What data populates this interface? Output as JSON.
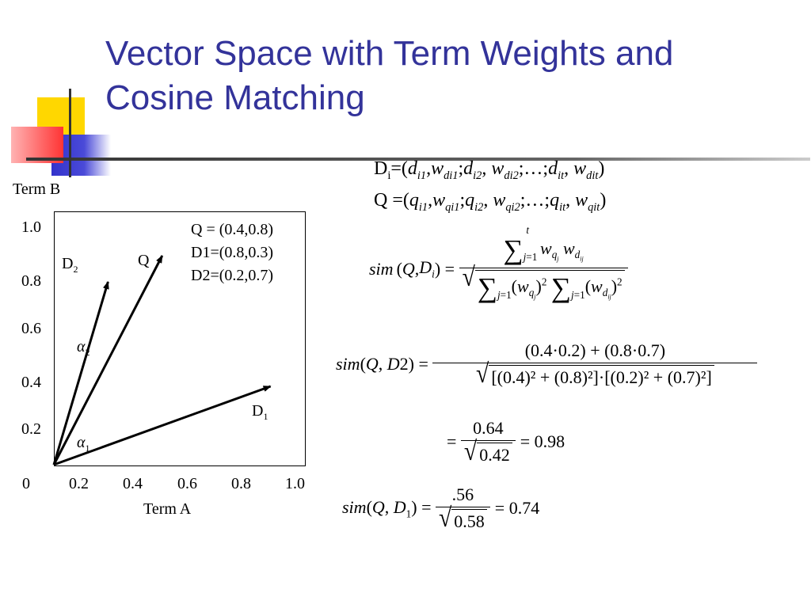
{
  "slide": {
    "title_line1": "Vector Space with Term Weights and",
    "title_line2": "Cosine Matching"
  },
  "colors": {
    "title": "#33339a",
    "deco_yellow": "#ffd700",
    "deco_blue": "#3333cc",
    "deco_red": "#ff3333",
    "deco_line": "#555555"
  },
  "definitions": {
    "di": "Di=(di1,wdi1;di2, wdi2;…;dit, wdit)",
    "q": "Q =(qi1,wqi1;qi2, wqi2;…;qit, wqit)"
  },
  "graph": {
    "y_axis_title": "Term B",
    "x_axis_title": "Term A",
    "x_ticks": [
      "0",
      "0.2",
      "0.4",
      "0.6",
      "0.8",
      "1.0"
    ],
    "y_ticks": [
      "1.0",
      "0.8",
      "0.6",
      "0.4",
      "0.2"
    ],
    "legend": [
      "Q = (0.4,0.8)",
      "D1=(0.8,0.3)",
      "D2=(0.2,0.7)"
    ],
    "vectors": [
      {
        "name": "Q",
        "x": 0.4,
        "y": 0.8
      },
      {
        "name": "D1",
        "x": 0.8,
        "y": 0.3
      },
      {
        "name": "D2",
        "x": 0.2,
        "y": 0.7
      }
    ],
    "vector_labels": {
      "q": "Q",
      "d1": "D",
      "d1_sub": "1",
      "d2": "D",
      "d2_sub": "2"
    },
    "angle_labels": {
      "a1": "α",
      "a1_sub": "1",
      "a2": "α",
      "a2_sub": "2"
    }
  },
  "formulas": {
    "sim_general": "sim(Q, Di) = Σ wqj wdij / √(Σ (wqj)² Σ (wdij)²)",
    "sim_d2_lhs": "sim(Q, D2) =",
    "sim_d2_num": "(0.4·0.2) + (0.8·0.7)",
    "sim_d2_den": "[(0.4)² + (0.8)²]·[(0.2)² + (0.7)²]",
    "step2_num": "0.64",
    "step2_den": "0.42",
    "step2_result": "= 0.98",
    "sim_d1_lhs": "sim(Q, D1) =",
    "sim_d1_num": ".56",
    "sim_d1_den": "0.58",
    "sim_d1_result": "= 0.74"
  }
}
